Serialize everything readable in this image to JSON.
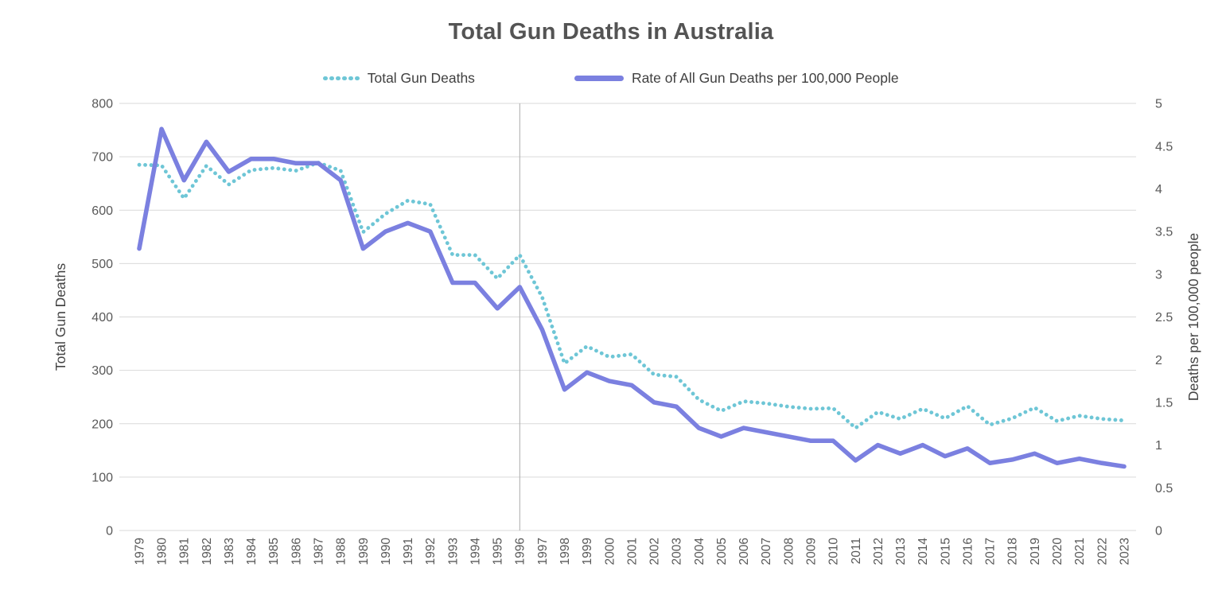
{
  "title": "Total Gun Deaths in Australia",
  "legend": {
    "items": [
      {
        "label": "Total Gun Deaths",
        "swatch": "dotted",
        "color": "#6EC6D6"
      },
      {
        "label": "Rate of All Gun Deaths per 100,000 People",
        "swatch": "line",
        "color": "#7B80E0"
      }
    ]
  },
  "chart_data": {
    "type": "line",
    "title": "Total Gun Deaths in Australia",
    "x": [
      1979,
      1980,
      1981,
      1982,
      1983,
      1984,
      1985,
      1986,
      1987,
      1988,
      1989,
      1990,
      1991,
      1992,
      1993,
      1994,
      1995,
      1996,
      1997,
      1998,
      1999,
      2000,
      2001,
      2002,
      2003,
      2004,
      2005,
      2006,
      2007,
      2008,
      2009,
      2010,
      2011,
      2012,
      2013,
      2014,
      2015,
      2016,
      2017,
      2018,
      2019,
      2020,
      2021,
      2022,
      2023
    ],
    "series": [
      {
        "name": "Total Gun Deaths",
        "axis": "left",
        "style": "dotted",
        "color": "#6EC6D6",
        "values": [
          685,
          684,
          622,
          683,
          648,
          675,
          679,
          674,
          689,
          674,
          559,
          593,
          618,
          611,
          516,
          516,
          472,
          516,
          437,
          313,
          345,
          325,
          330,
          292,
          288,
          245,
          224,
          242,
          238,
          232,
          228,
          229,
          192,
          222,
          209,
          228,
          210,
          233,
          198,
          210,
          230,
          205,
          215,
          209,
          206
        ]
      },
      {
        "name": "Rate of All Gun Deaths per 100,000 People",
        "axis": "right",
        "style": "solid",
        "color": "#7B80E0",
        "values": [
          3.3,
          4.7,
          4.1,
          4.55,
          4.2,
          4.35,
          4.35,
          4.3,
          4.3,
          4.1,
          3.3,
          3.5,
          3.6,
          3.5,
          2.9,
          2.9,
          2.6,
          2.85,
          2.35,
          1.65,
          1.85,
          1.75,
          1.7,
          1.5,
          1.45,
          1.2,
          1.1,
          1.2,
          1.15,
          1.1,
          1.05,
          1.05,
          0.82,
          1.0,
          0.9,
          1.0,
          0.87,
          0.96,
          0.79,
          0.83,
          0.9,
          0.79,
          0.84,
          0.79,
          0.75
        ]
      }
    ],
    "left_axis": {
      "title": "Total Gun Deaths",
      "min": 0,
      "max": 800,
      "ticks": [
        "800",
        "700",
        "600",
        "500",
        "400",
        "300",
        "200",
        "100",
        "0"
      ]
    },
    "right_axis": {
      "title": "Deaths per 100,000 people",
      "min": 0,
      "max": 5,
      "ticks": [
        "5",
        "4.5",
        "4",
        "3.5",
        "3",
        "2.5",
        "2",
        "1.5",
        "1",
        "0.5",
        "0"
      ]
    },
    "x_axis": {
      "labels": [
        "1979",
        "1980",
        "1981",
        "1982",
        "1983",
        "1984",
        "1985",
        "1986",
        "1987",
        "1988",
        "1989",
        "1990",
        "1991",
        "1992",
        "1993",
        "1994",
        "1995",
        "1996",
        "1997",
        "1998",
        "1999",
        "2000",
        "2001",
        "2002",
        "2003",
        "2004",
        "2005",
        "2006",
        "2007",
        "2008",
        "2009",
        "2010",
        "2011",
        "2012",
        "2013",
        "2014",
        "2015",
        "2016",
        "2017",
        "2018",
        "2019",
        "2020",
        "2021",
        "2022",
        "2023"
      ]
    },
    "reference_line": {
      "x_label": "1996",
      "color": "#ABABAB"
    },
    "grid": true,
    "gridline_color": "#D9D9D9",
    "legend_position": "top"
  }
}
